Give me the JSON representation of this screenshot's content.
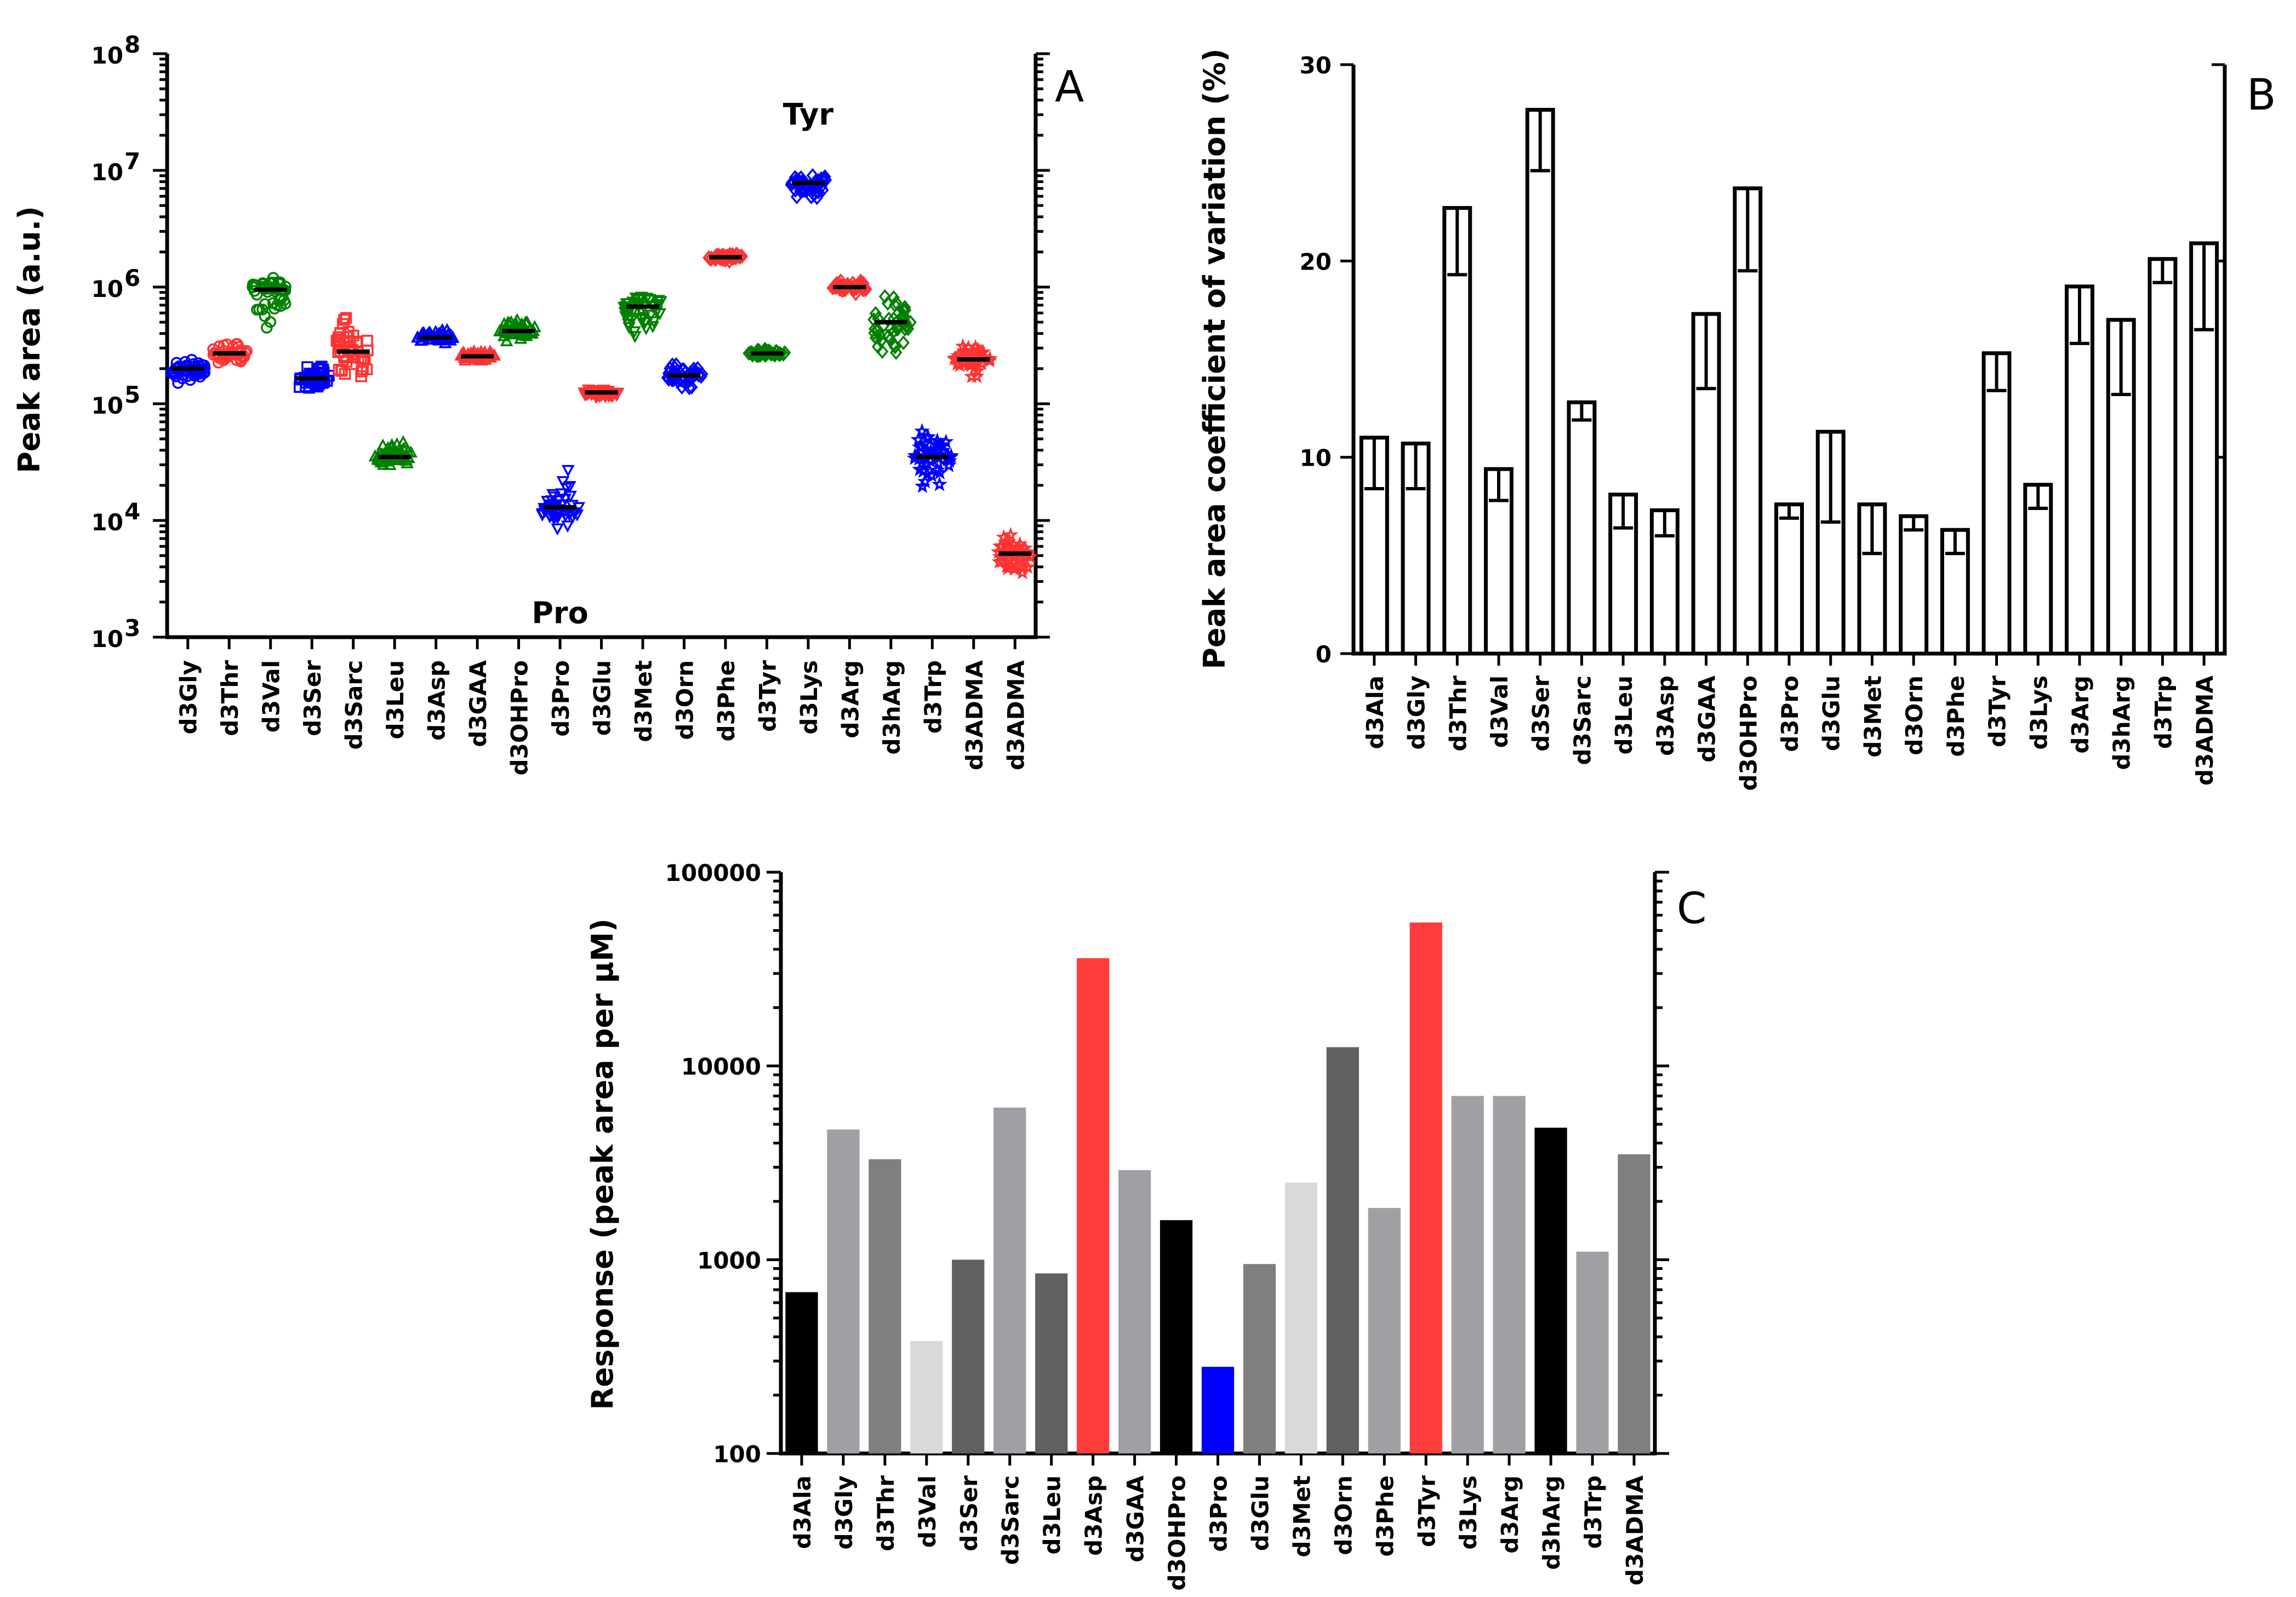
{
  "colors": {
    "red": "#ff3333",
    "blue": "#0000ff",
    "green": "#008000",
    "black": "#000000"
  },
  "chart_data": [
    {
      "panel": "A",
      "type": "scatter",
      "title": "",
      "ylabel": "Peak area (a.u.)",
      "yscale": "log",
      "ylim": [
        1000,
        100000000
      ],
      "yticks": [
        {
          "base": "10",
          "exp": "3"
        },
        {
          "base": "10",
          "exp": "4"
        },
        {
          "base": "10",
          "exp": "5"
        },
        {
          "base": "10",
          "exp": "6"
        },
        {
          "base": "10",
          "exp": "7"
        },
        {
          "base": "10",
          "exp": "8"
        }
      ],
      "annotations": [
        {
          "text": "Tyr",
          "category_index": 15,
          "value": 30000000
        },
        {
          "text": "Pro",
          "category_index": 9,
          "value": 1600
        }
      ],
      "categories": [
        "d3Gly",
        "d3Thr",
        "d3Val",
        "d3Ser",
        "d3Sarc",
        "d3Leu",
        "d3Asp",
        "d3GAA",
        "d3OHPro",
        "d3Pro",
        "d3Glu",
        "d3Met",
        "d3Orn",
        "d3Phe",
        "d3Tyr",
        "d3Lys",
        "d3Arg",
        "d3hArg",
        "d3Trp",
        "d3ADMA",
        "d3ADMA"
      ],
      "series": [
        {
          "category": "d3Gly",
          "color": "blue",
          "median": 200000,
          "low": 140000,
          "high": 260000,
          "marker": "circle"
        },
        {
          "category": "d3Thr",
          "color": "red",
          "median": 270000,
          "low": 200000,
          "high": 370000,
          "marker": "circle"
        },
        {
          "category": "d3Val",
          "color": "green",
          "median": 950000,
          "low": 380000,
          "high": 1450000,
          "marker": "circle"
        },
        {
          "category": "d3Ser",
          "color": "blue",
          "median": 165000,
          "low": 120000,
          "high": 230000,
          "marker": "square"
        },
        {
          "category": "d3Sarc",
          "color": "red",
          "median": 280000,
          "low": 120000,
          "high": 650000,
          "marker": "square"
        },
        {
          "category": "d3Leu",
          "color": "green",
          "median": 35000,
          "low": 28000,
          "high": 52000,
          "marker": "triangle"
        },
        {
          "category": "d3Asp",
          "color": "blue",
          "median": 370000,
          "low": 300000,
          "high": 440000,
          "marker": "triangle"
        },
        {
          "category": "d3GAA",
          "color": "red",
          "median": 255000,
          "low": 220000,
          "high": 300000,
          "marker": "triangle"
        },
        {
          "category": "d3OHPro",
          "color": "green",
          "median": 420000,
          "low": 320000,
          "high": 600000,
          "marker": "triangle"
        },
        {
          "category": "d3Pro",
          "color": "blue",
          "median": 13000,
          "low": 6800,
          "high": 30000,
          "marker": "triangle-down"
        },
        {
          "category": "d3Glu",
          "color": "red",
          "median": 125000,
          "low": 110000,
          "high": 140000,
          "marker": "triangle-down"
        },
        {
          "category": "d3Met",
          "color": "green",
          "median": 680000,
          "low": 280000,
          "high": 900000,
          "marker": "triangle-down"
        },
        {
          "category": "d3Orn",
          "color": "blue",
          "median": 175000,
          "low": 125000,
          "high": 230000,
          "marker": "diamond"
        },
        {
          "category": "d3Phe",
          "color": "red",
          "median": 1800000,
          "low": 1600000,
          "high": 2000000,
          "marker": "diamond"
        },
        {
          "category": "d3Tyr",
          "color": "green",
          "median": 270000,
          "low": 240000,
          "high": 300000,
          "marker": "diamond"
        },
        {
          "category": "d3Lys",
          "color": "blue",
          "median": 7800000,
          "low": 4500000,
          "high": 9800000,
          "marker": "diamond"
        },
        {
          "category": "d3Arg",
          "color": "red",
          "median": 1000000,
          "low": 850000,
          "high": 1200000,
          "marker": "diamond"
        },
        {
          "category": "d3hArg",
          "color": "green",
          "median": 500000,
          "low": 200000,
          "high": 1000000,
          "marker": "diamond"
        },
        {
          "category": "d3Trp",
          "color": "blue",
          "median": 35000,
          "low": 15000,
          "high": 70000,
          "marker": "star"
        },
        {
          "category": "d3ADMA",
          "color": "red",
          "median": 240000,
          "low": 160000,
          "high": 330000,
          "marker": "star"
        },
        {
          "category": "d3ADMA",
          "color": "red",
          "median": 5200,
          "low": 3000,
          "high": 7800,
          "marker": "star"
        }
      ]
    },
    {
      "panel": "B",
      "type": "bar",
      "title": "",
      "ylabel": "Peak area coefficient of variation (%)",
      "ylim": [
        0,
        30
      ],
      "yticks": [
        "0",
        "10",
        "20",
        "30"
      ],
      "categories": [
        "d3Ala",
        "d3Gly",
        "d3Thr",
        "d3Val",
        "d3Ser",
        "d3Sarc",
        "d3Leu",
        "d3Asp",
        "d3GAA",
        "d3OHPro",
        "d3Pro",
        "d3Glu",
        "d3Met",
        "d3Orn",
        "d3Phe",
        "d3Tyr",
        "d3Lys",
        "d3Arg",
        "d3hArg",
        "d3Trp",
        "d3ADMA"
      ],
      "values": [
        11.0,
        10.7,
        22.7,
        9.4,
        27.7,
        12.8,
        8.1,
        7.3,
        17.3,
        23.7,
        7.6,
        11.3,
        7.6,
        7.0,
        6.3,
        15.3,
        8.6,
        18.7,
        17.0,
        20.1,
        20.9
      ],
      "error_low": [
        8.4,
        8.4,
        19.3,
        7.8,
        24.6,
        11.9,
        6.4,
        6.0,
        13.5,
        19.5,
        6.9,
        6.7,
        5.1,
        6.3,
        5.1,
        13.4,
        7.4,
        15.8,
        13.2,
        18.9,
        16.5
      ]
    },
    {
      "panel": "C",
      "type": "bar",
      "title": "",
      "ylabel": "Response (peak area per µM)",
      "yscale": "log",
      "ylim": [
        100,
        100000
      ],
      "yticks": [
        "100",
        "1000",
        "10000",
        "100000"
      ],
      "categories": [
        "d3Ala",
        "d3Gly",
        "d3Thr",
        "d3Val",
        "d3Ser",
        "d3Sarc",
        "d3Leu",
        "d3Asp",
        "d3GAA",
        "d3OHPro",
        "d3Pro",
        "d3Glu",
        "d3Met",
        "d3Orn",
        "d3Phe",
        "d3Tyr",
        "d3Lys",
        "d3Arg",
        "d3hArg",
        "d3Trp",
        "d3ADMA"
      ],
      "values": [
        680,
        4700,
        3300,
        380,
        1000,
        6100,
        850,
        36000,
        2900,
        1600,
        280,
        950,
        2500,
        12500,
        1850,
        55000,
        7000,
        7000,
        4800,
        1100,
        3500
      ],
      "bar_colors": [
        "#000000",
        "#a0a0a4",
        "#7f7f7f",
        "#d9d9d9",
        "#606060",
        "#a0a0a4",
        "#606060",
        "#ff3c3c",
        "#a0a0a4",
        "#000000",
        "#0000ff",
        "#7f7f7f",
        "#d9d9d9",
        "#606060",
        "#a0a0a4",
        "#ff3c3c",
        "#a0a0a4",
        "#a0a0a4",
        "#000000",
        "#a0a0a4",
        "#7f7f7f"
      ]
    }
  ]
}
